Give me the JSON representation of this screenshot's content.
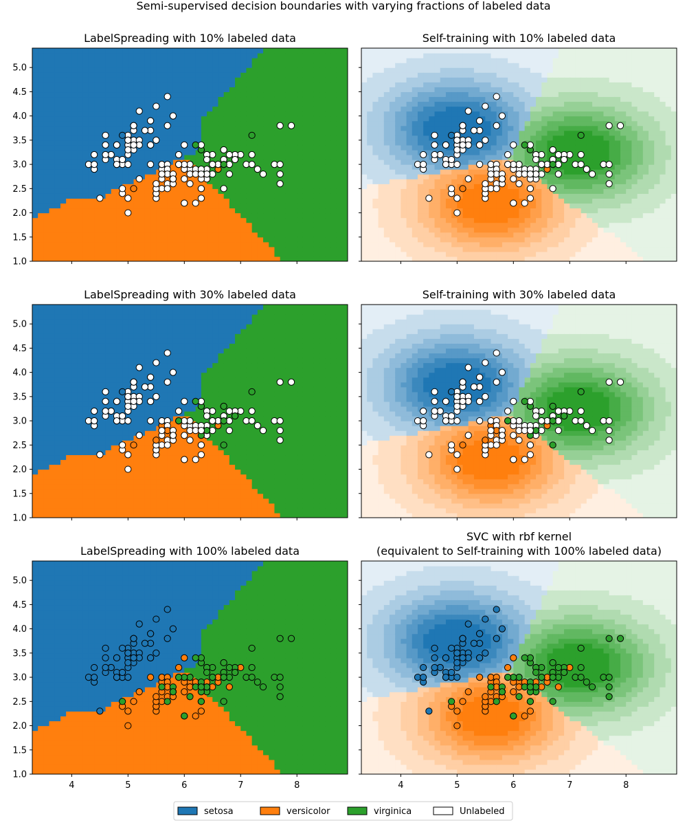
{
  "figure": {
    "suptitle": "Semi-supervised decision boundaries with varying fractions of labeled data"
  },
  "palette": {
    "setosa": "#1f77b4",
    "versicolor": "#ff7f0e",
    "virginica": "#2ca02c",
    "unlabeled": "#ffffff",
    "edge": "#000000"
  },
  "legend": {
    "placement": "bottom-center",
    "entries": [
      {
        "label": "setosa",
        "color": "#1f77b4"
      },
      {
        "label": "versicolor",
        "color": "#ff7f0e"
      },
      {
        "label": "virginica",
        "color": "#2ca02c"
      },
      {
        "label": "Unlabeled",
        "color": "#ffffff"
      }
    ]
  },
  "chart_data": [
    {
      "type": "scatter",
      "title": "LabelSpreading with 10% labeled data",
      "xlabel": "",
      "ylabel": "",
      "xlim": [
        3.3,
        8.9
      ],
      "ylim": [
        1.0,
        5.4
      ],
      "xticks": [
        4,
        5,
        6,
        7,
        8
      ],
      "yticks": [
        1.0,
        1.5,
        2.0,
        2.5,
        3.0,
        3.5,
        4.0,
        4.5,
        5.0
      ],
      "show_x_tick_labels": false,
      "show_y_tick_labels": true,
      "background": "hard-class-regions",
      "points": [
        {
          "x": 4.9,
          "y": 3.6,
          "label": "setosa"
        },
        {
          "x": 5.1,
          "y": 2.5,
          "label": "versicolor"
        },
        {
          "x": 6.6,
          "y": 2.9,
          "label": "versicolor"
        },
        {
          "x": 6.7,
          "y": 3.0,
          "label": "virginica"
        },
        {
          "x": 6.2,
          "y": 3.4,
          "label": "virginica"
        },
        {
          "x": 6.3,
          "y": 3.3,
          "label": "virginica"
        },
        {
          "x": 7.2,
          "y": 3.6,
          "label": "virginica"
        }
      ]
    },
    {
      "type": "scatter",
      "title": "Self-training with 10% labeled data",
      "xlabel": "",
      "ylabel": "",
      "xlim": [
        3.3,
        8.9
      ],
      "ylim": [
        1.0,
        5.4
      ],
      "xticks": [
        4,
        5,
        6,
        7,
        8
      ],
      "yticks": [
        1.0,
        1.5,
        2.0,
        2.5,
        3.0,
        3.5,
        4.0,
        4.5,
        5.0
      ],
      "show_x_tick_labels": false,
      "show_y_tick_labels": false,
      "background": "graded-class-confidence",
      "points": [
        {
          "x": 4.9,
          "y": 3.6,
          "label": "setosa"
        },
        {
          "x": 5.1,
          "y": 2.5,
          "label": "versicolor"
        },
        {
          "x": 6.6,
          "y": 2.9,
          "label": "versicolor"
        },
        {
          "x": 6.7,
          "y": 3.0,
          "label": "virginica"
        },
        {
          "x": 6.2,
          "y": 3.4,
          "label": "virginica"
        },
        {
          "x": 6.3,
          "y": 3.3,
          "label": "virginica"
        },
        {
          "x": 7.2,
          "y": 3.6,
          "label": "virginica"
        }
      ]
    },
    {
      "type": "scatter",
      "title": "LabelSpreading with 30% labeled data",
      "xlabel": "",
      "ylabel": "",
      "xlim": [
        3.3,
        8.9
      ],
      "ylim": [
        1.0,
        5.4
      ],
      "xticks": [
        4,
        5,
        6,
        7,
        8
      ],
      "yticks": [
        1.0,
        1.5,
        2.0,
        2.5,
        3.0,
        3.5,
        4.0,
        4.5,
        5.0
      ],
      "show_x_tick_labels": false,
      "show_y_tick_labels": true,
      "background": "hard-class-regions",
      "points": [
        {
          "x": 4.9,
          "y": 3.6,
          "label": "setosa"
        },
        {
          "x": 5.1,
          "y": 2.5,
          "label": "versicolor"
        },
        {
          "x": 5.6,
          "y": 2.9,
          "label": "versicolor"
        },
        {
          "x": 5.7,
          "y": 2.8,
          "label": "versicolor"
        },
        {
          "x": 5.5,
          "y": 2.6,
          "label": "versicolor"
        },
        {
          "x": 6.6,
          "y": 2.9,
          "label": "versicolor"
        },
        {
          "x": 5.9,
          "y": 3.0,
          "label": "virginica"
        },
        {
          "x": 6.2,
          "y": 3.4,
          "label": "virginica"
        },
        {
          "x": 6.3,
          "y": 3.3,
          "label": "virginica"
        },
        {
          "x": 6.4,
          "y": 2.8,
          "label": "virginica"
        },
        {
          "x": 6.3,
          "y": 2.7,
          "label": "virginica"
        },
        {
          "x": 6.7,
          "y": 3.3,
          "label": "virginica"
        },
        {
          "x": 6.9,
          "y": 3.1,
          "label": "virginica"
        },
        {
          "x": 6.7,
          "y": 2.5,
          "label": "virginica"
        },
        {
          "x": 7.2,
          "y": 3.6,
          "label": "virginica"
        },
        {
          "x": 6.7,
          "y": 3.0,
          "label": "virginica"
        }
      ]
    },
    {
      "type": "scatter",
      "title": "Self-training with 30% labeled data",
      "xlabel": "",
      "ylabel": "",
      "xlim": [
        3.3,
        8.9
      ],
      "ylim": [
        1.0,
        5.4
      ],
      "xticks": [
        4,
        5,
        6,
        7,
        8
      ],
      "yticks": [
        1.0,
        1.5,
        2.0,
        2.5,
        3.0,
        3.5,
        4.0,
        4.5,
        5.0
      ],
      "show_x_tick_labels": false,
      "show_y_tick_labels": false,
      "background": "graded-class-confidence",
      "points": [
        {
          "x": 4.9,
          "y": 3.6,
          "label": "setosa"
        },
        {
          "x": 5.1,
          "y": 2.5,
          "label": "versicolor"
        },
        {
          "x": 5.6,
          "y": 2.9,
          "label": "versicolor"
        },
        {
          "x": 5.7,
          "y": 2.8,
          "label": "versicolor"
        },
        {
          "x": 5.5,
          "y": 2.6,
          "label": "versicolor"
        },
        {
          "x": 6.6,
          "y": 2.9,
          "label": "versicolor"
        },
        {
          "x": 5.9,
          "y": 3.0,
          "label": "virginica"
        },
        {
          "x": 6.2,
          "y": 3.4,
          "label": "virginica"
        },
        {
          "x": 6.3,
          "y": 3.3,
          "label": "virginica"
        },
        {
          "x": 6.4,
          "y": 2.8,
          "label": "virginica"
        },
        {
          "x": 6.3,
          "y": 2.7,
          "label": "virginica"
        },
        {
          "x": 6.7,
          "y": 3.3,
          "label": "virginica"
        },
        {
          "x": 6.9,
          "y": 3.1,
          "label": "virginica"
        },
        {
          "x": 6.7,
          "y": 2.5,
          "label": "virginica"
        },
        {
          "x": 7.2,
          "y": 3.6,
          "label": "virginica"
        },
        {
          "x": 6.7,
          "y": 3.0,
          "label": "virginica"
        }
      ]
    },
    {
      "type": "scatter",
      "title": "LabelSpreading with 100% labeled data",
      "xlabel": "",
      "ylabel": "",
      "xlim": [
        3.3,
        8.9
      ],
      "ylim": [
        1.0,
        5.4
      ],
      "xticks": [
        4,
        5,
        6,
        7,
        8
      ],
      "yticks": [
        1.0,
        1.5,
        2.0,
        2.5,
        3.0,
        3.5,
        4.0,
        4.5,
        5.0
      ],
      "show_x_tick_labels": true,
      "show_y_tick_labels": true,
      "background": "hard-class-regions",
      "points": "all-labeled"
    },
    {
      "type": "scatter",
      "title": "SVC with rbf kernel\n(equivalent to Self-training with 100% labeled data)",
      "xlabel": "",
      "ylabel": "",
      "xlim": [
        3.3,
        8.9
      ],
      "ylim": [
        1.0,
        5.4
      ],
      "xticks": [
        4,
        5,
        6,
        7,
        8
      ],
      "yticks": [
        1.0,
        1.5,
        2.0,
        2.5,
        3.0,
        3.5,
        4.0,
        4.5,
        5.0
      ],
      "show_x_tick_labels": true,
      "show_y_tick_labels": false,
      "background": "graded-class-confidence",
      "points": "all-labeled"
    }
  ],
  "dataset": {
    "setosa": [
      [
        5.1,
        3.5
      ],
      [
        4.9,
        3.0
      ],
      [
        4.7,
        3.2
      ],
      [
        4.6,
        3.1
      ],
      [
        5.0,
        3.6
      ],
      [
        5.4,
        3.9
      ],
      [
        4.6,
        3.4
      ],
      [
        5.0,
        3.4
      ],
      [
        4.4,
        2.9
      ],
      [
        4.9,
        3.1
      ],
      [
        5.4,
        3.7
      ],
      [
        4.8,
        3.4
      ],
      [
        4.8,
        3.0
      ],
      [
        4.3,
        3.0
      ],
      [
        5.8,
        4.0
      ],
      [
        5.7,
        4.4
      ],
      [
        5.4,
        3.9
      ],
      [
        5.1,
        3.5
      ],
      [
        5.7,
        3.8
      ],
      [
        5.1,
        3.8
      ],
      [
        5.4,
        3.4
      ],
      [
        5.1,
        3.7
      ],
      [
        4.6,
        3.6
      ],
      [
        5.1,
        3.3
      ],
      [
        4.8,
        3.4
      ],
      [
        5.0,
        3.0
      ],
      [
        5.0,
        3.4
      ],
      [
        5.2,
        3.5
      ],
      [
        5.2,
        3.4
      ],
      [
        4.7,
        3.2
      ],
      [
        4.8,
        3.1
      ],
      [
        5.4,
        3.4
      ],
      [
        5.2,
        4.1
      ],
      [
        5.5,
        4.2
      ],
      [
        4.9,
        3.1
      ],
      [
        5.0,
        3.2
      ],
      [
        5.5,
        3.5
      ],
      [
        4.9,
        3.6
      ],
      [
        4.4,
        3.0
      ],
      [
        5.1,
        3.4
      ],
      [
        5.0,
        3.5
      ],
      [
        4.5,
        2.3
      ],
      [
        4.4,
        3.2
      ],
      [
        5.0,
        3.5
      ],
      [
        5.1,
        3.8
      ],
      [
        4.8,
        3.0
      ],
      [
        5.1,
        3.8
      ],
      [
        4.6,
        3.2
      ],
      [
        5.3,
        3.7
      ],
      [
        5.0,
        3.3
      ]
    ],
    "versicolor": [
      [
        7.0,
        3.2
      ],
      [
        6.4,
        3.2
      ],
      [
        6.9,
        3.1
      ],
      [
        5.5,
        2.3
      ],
      [
        6.5,
        2.8
      ],
      [
        5.7,
        2.8
      ],
      [
        6.3,
        3.3
      ],
      [
        4.9,
        2.4
      ],
      [
        6.6,
        2.9
      ],
      [
        5.2,
        2.7
      ],
      [
        5.0,
        2.0
      ],
      [
        5.9,
        3.0
      ],
      [
        6.0,
        2.2
      ],
      [
        6.1,
        2.9
      ],
      [
        5.6,
        2.9
      ],
      [
        6.7,
        3.1
      ],
      [
        5.6,
        3.0
      ],
      [
        5.8,
        2.7
      ],
      [
        6.2,
        2.2
      ],
      [
        5.6,
        2.5
      ],
      [
        5.9,
        3.2
      ],
      [
        6.1,
        2.8
      ],
      [
        6.3,
        2.5
      ],
      [
        6.1,
        2.8
      ],
      [
        6.4,
        2.9
      ],
      [
        6.6,
        3.0
      ],
      [
        6.8,
        2.8
      ],
      [
        6.7,
        3.0
      ],
      [
        6.0,
        2.9
      ],
      [
        5.7,
        2.6
      ],
      [
        5.5,
        2.4
      ],
      [
        5.5,
        2.4
      ],
      [
        5.8,
        2.7
      ],
      [
        6.0,
        2.7
      ],
      [
        5.4,
        3.0
      ],
      [
        6.0,
        3.4
      ],
      [
        6.7,
        3.1
      ],
      [
        6.3,
        2.3
      ],
      [
        5.6,
        3.0
      ],
      [
        5.5,
        2.5
      ],
      [
        5.5,
        2.6
      ],
      [
        6.1,
        3.0
      ],
      [
        5.8,
        2.6
      ],
      [
        5.0,
        2.3
      ],
      [
        5.6,
        2.7
      ],
      [
        5.7,
        3.0
      ],
      [
        5.7,
        2.9
      ],
      [
        6.2,
        2.9
      ],
      [
        5.1,
        2.5
      ],
      [
        5.7,
        2.8
      ]
    ],
    "virginica": [
      [
        6.3,
        3.3
      ],
      [
        5.8,
        2.7
      ],
      [
        7.1,
        3.0
      ],
      [
        6.3,
        2.9
      ],
      [
        6.5,
        3.0
      ],
      [
        7.6,
        3.0
      ],
      [
        4.9,
        2.5
      ],
      [
        7.3,
        2.9
      ],
      [
        6.7,
        2.5
      ],
      [
        7.2,
        3.6
      ],
      [
        6.5,
        3.2
      ],
      [
        6.4,
        2.7
      ],
      [
        6.8,
        3.0
      ],
      [
        5.7,
        2.5
      ],
      [
        5.8,
        2.8
      ],
      [
        6.4,
        3.2
      ],
      [
        6.5,
        3.0
      ],
      [
        7.7,
        3.8
      ],
      [
        7.7,
        2.6
      ],
      [
        6.0,
        2.2
      ],
      [
        6.9,
        3.2
      ],
      [
        5.6,
        2.8
      ],
      [
        7.7,
        2.8
      ],
      [
        6.3,
        2.7
      ],
      [
        6.7,
        3.3
      ],
      [
        7.2,
        3.2
      ],
      [
        6.2,
        2.8
      ],
      [
        6.1,
        3.0
      ],
      [
        6.4,
        2.8
      ],
      [
        7.2,
        3.0
      ],
      [
        7.4,
        2.8
      ],
      [
        7.9,
        3.8
      ],
      [
        6.4,
        2.8
      ],
      [
        6.3,
        2.8
      ],
      [
        6.1,
        2.6
      ],
      [
        7.7,
        3.0
      ],
      [
        6.3,
        3.4
      ],
      [
        6.4,
        3.1
      ],
      [
        6.0,
        3.0
      ],
      [
        6.9,
        3.1
      ],
      [
        6.7,
        3.1
      ],
      [
        6.9,
        3.1
      ],
      [
        5.8,
        2.7
      ],
      [
        6.8,
        3.2
      ],
      [
        6.7,
        3.3
      ],
      [
        6.7,
        3.0
      ],
      [
        6.3,
        2.5
      ],
      [
        6.5,
        3.0
      ],
      [
        6.2,
        3.4
      ],
      [
        5.9,
        3.0
      ]
    ]
  }
}
